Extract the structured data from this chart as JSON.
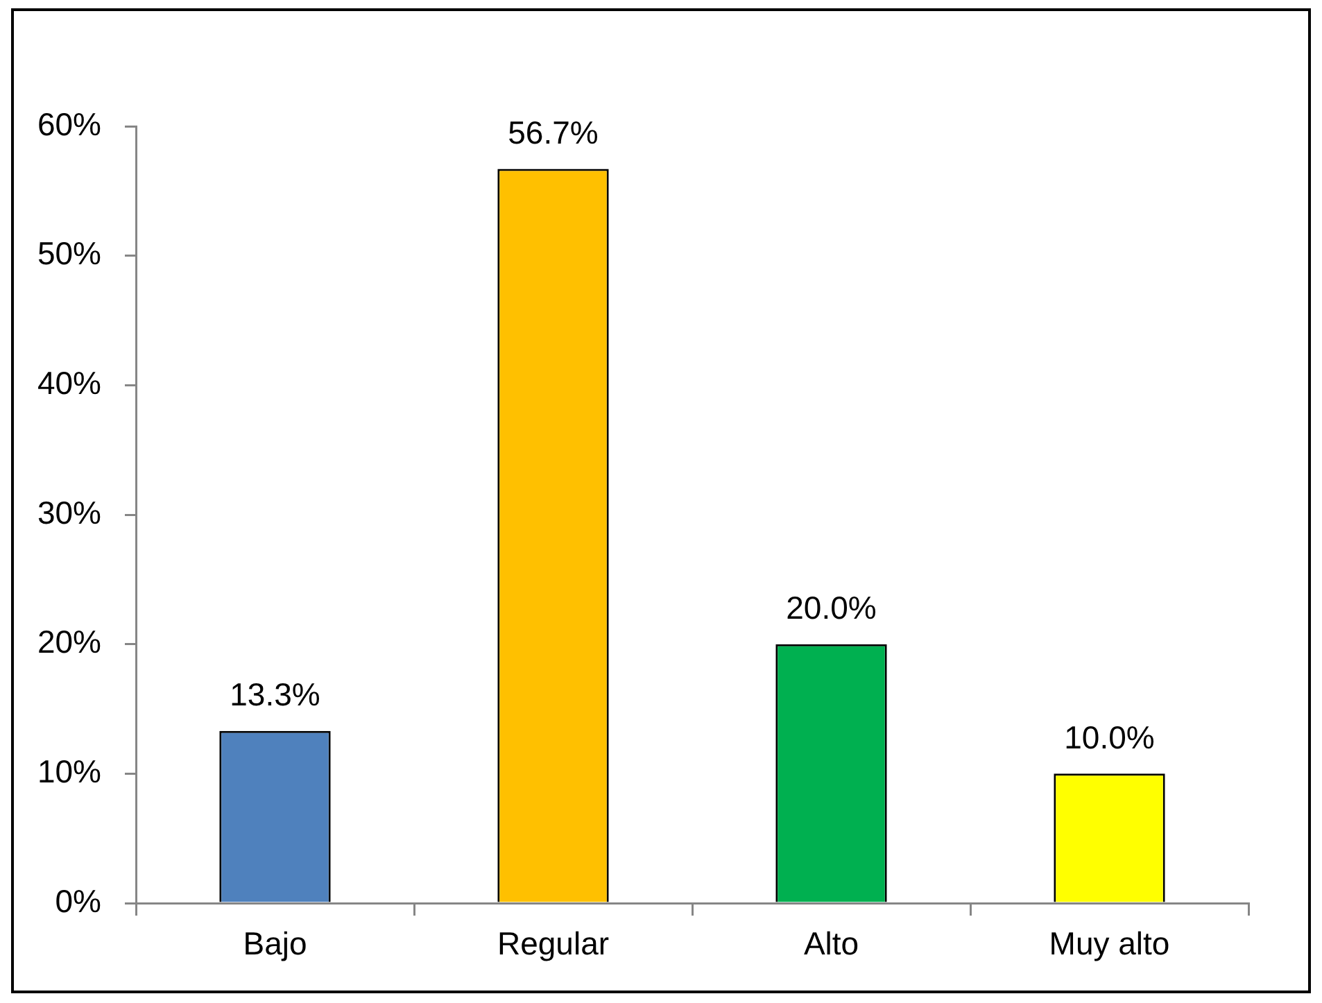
{
  "chart_data": {
    "type": "bar",
    "categories": [
      "Bajo",
      "Regular",
      "Alto",
      "Muy alto"
    ],
    "values": [
      13.3,
      56.7,
      20.0,
      10.0
    ],
    "colors": [
      "#4f81bd",
      "#ffc000",
      "#00b050",
      "#ffff00"
    ],
    "value_labels": [
      "13.3%",
      "56.7%",
      "20.0%",
      "10.0%"
    ],
    "ylim": [
      0,
      60
    ],
    "yticks": [
      {
        "value": 0,
        "label": "0%"
      },
      {
        "value": 10,
        "label": "10%"
      },
      {
        "value": 20,
        "label": "20%"
      },
      {
        "value": 30,
        "label": "30%"
      },
      {
        "value": 40,
        "label": "40%"
      },
      {
        "value": 50,
        "label": "50%"
      },
      {
        "value": 60,
        "label": "60%"
      }
    ]
  }
}
